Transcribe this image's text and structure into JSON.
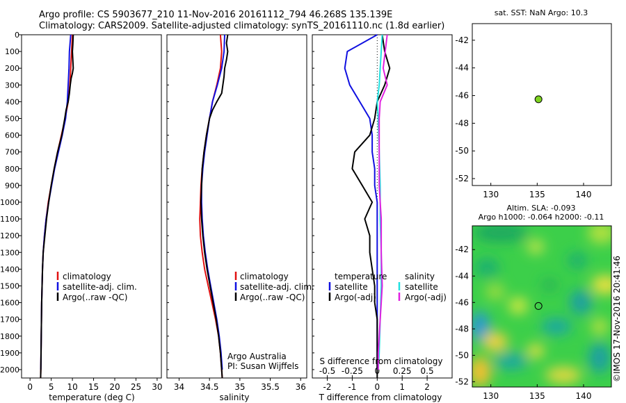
{
  "header": {
    "line1": "Argo profile: CS 5903677_210 11-Nov-2016 20161112_794 46.268S 135.139E",
    "line2": "Climatology: CARS2009. Satellite-adjusted climatology: synTS_20161110.nc (1.8d earlier)"
  },
  "credits": {
    "org": "Argo Australia",
    "pi": "PI: Susan Wijffels",
    "imos": "©IMOS 17-Nov-2016 20:41:46"
  },
  "colors": {
    "climatology": "#e01010",
    "satellite": "#1010e0",
    "argo": "#000000",
    "sat_salinity": "#20e0e0",
    "argo_salinity": "#e020e0",
    "dot": "#7ed321"
  },
  "chart_data": [
    {
      "type": "line",
      "id": "temperature",
      "xlabel": "temperature (deg C)",
      "xlim": [
        -2,
        31
      ],
      "ylim": [
        2050,
        0
      ],
      "xticks": [
        0,
        5,
        10,
        15,
        20,
        25,
        30
      ],
      "yticks": [
        0,
        100,
        200,
        300,
        400,
        500,
        600,
        700,
        800,
        900,
        1000,
        1100,
        1200,
        1300,
        1400,
        1500,
        1600,
        1700,
        1800,
        1900,
        2000
      ],
      "legend": [
        "climatology",
        "satellite-adj. clim.",
        "Argo(..raw -QC)"
      ],
      "series": [
        {
          "name": "climatology",
          "color": "#e01010",
          "points": [
            [
              10.0,
              0
            ],
            [
              9.8,
              100
            ],
            [
              9.6,
              200
            ],
            [
              9.4,
              300
            ],
            [
              9.0,
              400
            ],
            [
              8.3,
              500
            ],
            [
              7.4,
              600
            ],
            [
              6.5,
              700
            ],
            [
              5.7,
              800
            ],
            [
              5.0,
              900
            ],
            [
              4.3,
              1000
            ],
            [
              3.8,
              1100
            ],
            [
              3.4,
              1200
            ],
            [
              3.1,
              1300
            ],
            [
              2.95,
              1400
            ],
            [
              2.85,
              1500
            ],
            [
              2.75,
              1600
            ],
            [
              2.7,
              1700
            ],
            [
              2.65,
              1800
            ],
            [
              2.6,
              1900
            ],
            [
              2.55,
              2000
            ],
            [
              2.5,
              2050
            ]
          ]
        },
        {
          "name": "satellite-adj. clim.",
          "color": "#1010e0",
          "points": [
            [
              9.6,
              0
            ],
            [
              9.3,
              100
            ],
            [
              9.2,
              200
            ],
            [
              9.0,
              300
            ],
            [
              8.8,
              400
            ],
            [
              8.4,
              500
            ],
            [
              7.6,
              600
            ],
            [
              6.7,
              700
            ],
            [
              5.8,
              800
            ],
            [
              5.1,
              900
            ],
            [
              4.4,
              1000
            ],
            [
              3.8,
              1100
            ],
            [
              3.4,
              1200
            ],
            [
              3.1,
              1300
            ],
            [
              2.95,
              1400
            ],
            [
              2.85,
              1500
            ],
            [
              2.75,
              1600
            ],
            [
              2.7,
              1700
            ],
            [
              2.65,
              1800
            ],
            [
              2.6,
              1900
            ],
            [
              2.55,
              2000
            ]
          ]
        },
        {
          "name": "Argo(..raw -QC)",
          "color": "#000000",
          "points": [
            [
              10.2,
              0
            ],
            [
              10.1,
              60
            ],
            [
              10.0,
              100
            ],
            [
              10.2,
              200
            ],
            [
              10.0,
              230
            ],
            [
              9.7,
              260
            ],
            [
              9.5,
              300
            ],
            [
              9.3,
              350
            ],
            [
              9.0,
              400
            ],
            [
              8.5,
              450
            ],
            [
              8.2,
              500
            ],
            [
              7.5,
              600
            ],
            [
              6.5,
              700
            ],
            [
              5.7,
              800
            ],
            [
              5.0,
              900
            ],
            [
              4.4,
              1000
            ],
            [
              3.9,
              1100
            ],
            [
              3.5,
              1200
            ],
            [
              3.1,
              1300
            ],
            [
              2.95,
              1400
            ],
            [
              2.85,
              1500
            ],
            [
              2.75,
              1600
            ],
            [
              2.7,
              1700
            ],
            [
              2.65,
              1800
            ],
            [
              2.6,
              1900
            ],
            [
              2.55,
              2000
            ],
            [
              2.5,
              2050
            ]
          ]
        }
      ]
    },
    {
      "type": "line",
      "id": "salinity",
      "xlabel": "salinity",
      "xlim": [
        33.8,
        36.1
      ],
      "ylim": [
        2050,
        0
      ],
      "xticks": [
        34,
        34.5,
        35,
        35.5,
        36
      ],
      "xticklabels": [
        "34",
        "34.5",
        "35",
        "35.5",
        "36"
      ],
      "legend": [
        "climatology",
        "satellite-adj. clim.",
        "Argo(..raw -QC)"
      ],
      "series": [
        {
          "name": "climatology",
          "color": "#e01010",
          "points": [
            [
              34.68,
              0
            ],
            [
              34.7,
              100
            ],
            [
              34.68,
              200
            ],
            [
              34.62,
              300
            ],
            [
              34.55,
              400
            ],
            [
              34.5,
              500
            ],
            [
              34.45,
              600
            ],
            [
              34.41,
              700
            ],
            [
              34.38,
              800
            ],
            [
              34.36,
              900
            ],
            [
              34.35,
              1000
            ],
            [
              34.34,
              1100
            ],
            [
              34.35,
              1200
            ],
            [
              34.38,
              1300
            ],
            [
              34.42,
              1400
            ],
            [
              34.48,
              1500
            ],
            [
              34.54,
              1600
            ],
            [
              34.6,
              1700
            ],
            [
              34.65,
              1800
            ],
            [
              34.68,
              1900
            ],
            [
              34.7,
              2000
            ],
            [
              34.71,
              2050
            ]
          ]
        },
        {
          "name": "satellite-adj. clim.",
          "color": "#1010e0",
          "points": [
            [
              34.75,
              0
            ],
            [
              34.74,
              100
            ],
            [
              34.7,
              200
            ],
            [
              34.63,
              300
            ],
            [
              34.55,
              400
            ],
            [
              34.5,
              500
            ],
            [
              34.46,
              600
            ],
            [
              34.42,
              700
            ],
            [
              34.39,
              800
            ],
            [
              34.37,
              900
            ],
            [
              34.37,
              1000
            ],
            [
              34.38,
              1100
            ],
            [
              34.4,
              1200
            ],
            [
              34.43,
              1300
            ],
            [
              34.47,
              1400
            ],
            [
              34.52,
              1500
            ],
            [
              34.57,
              1600
            ],
            [
              34.62,
              1700
            ],
            [
              34.66,
              1800
            ],
            [
              34.69,
              1900
            ],
            [
              34.71,
              2000
            ]
          ]
        },
        {
          "name": "Argo(..raw -QC)",
          "color": "#000000",
          "points": [
            [
              34.8,
              0
            ],
            [
              34.78,
              50
            ],
            [
              34.8,
              100
            ],
            [
              34.78,
              150
            ],
            [
              34.75,
              200
            ],
            [
              34.74,
              250
            ],
            [
              34.72,
              300
            ],
            [
              34.7,
              350
            ],
            [
              34.62,
              400
            ],
            [
              34.55,
              450
            ],
            [
              34.5,
              500
            ],
            [
              34.45,
              600
            ],
            [
              34.41,
              700
            ],
            [
              34.38,
              800
            ],
            [
              34.37,
              900
            ],
            [
              34.36,
              1000
            ],
            [
              34.37,
              1100
            ],
            [
              34.39,
              1200
            ],
            [
              34.42,
              1300
            ],
            [
              34.46,
              1400
            ],
            [
              34.51,
              1500
            ],
            [
              34.56,
              1600
            ],
            [
              34.61,
              1700
            ],
            [
              34.65,
              1800
            ],
            [
              34.68,
              1900
            ],
            [
              34.7,
              2000
            ],
            [
              34.71,
              2050
            ]
          ]
        }
      ]
    },
    {
      "type": "line",
      "id": "difference",
      "xlabel": "T difference from climatology",
      "x2label": "S difference from climatology",
      "xlim": [
        -2.6,
        3.0
      ],
      "x2lim": [
        -0.65,
        0.75
      ],
      "ylim": [
        2050,
        0
      ],
      "xticks": [
        -2,
        -1,
        0,
        1,
        2
      ],
      "x2ticks": [
        -0.5,
        -0.25,
        0,
        0.25,
        0.5
      ],
      "x2ticklabels": [
        "-0.5",
        "-0.25",
        "0",
        "0.25",
        "0.5"
      ],
      "legend_temperature": {
        "title": "temperature",
        "items": [
          "satellite",
          "Argo(-adj)"
        ]
      },
      "legend_salinity": {
        "title": "salinity",
        "items": [
          "satellite",
          "Argo(-adj)"
        ]
      },
      "series": [
        {
          "name": "satellite",
          "group": "temperature",
          "color": "#1010e0",
          "points": [
            [
              0.0,
              0
            ],
            [
              -1.2,
              100
            ],
            [
              -1.3,
              200
            ],
            [
              -1.1,
              300
            ],
            [
              -0.7,
              400
            ],
            [
              -0.3,
              500
            ],
            [
              -0.2,
              600
            ],
            [
              -0.2,
              700
            ],
            [
              -0.1,
              800
            ],
            [
              -0.1,
              900
            ],
            [
              0.0,
              1000
            ],
            [
              0.0,
              1200
            ],
            [
              0.0,
              1400
            ],
            [
              0.0,
              1600
            ],
            [
              0.0,
              1800
            ],
            [
              0.0,
              2000
            ]
          ]
        },
        {
          "name": "Argo(-adj)",
          "group": "temperature",
          "color": "#000000",
          "points": [
            [
              0.2,
              0
            ],
            [
              0.3,
              100
            ],
            [
              0.5,
              200
            ],
            [
              0.3,
              300
            ],
            [
              0.0,
              400
            ],
            [
              -0.1,
              500
            ],
            [
              -0.3,
              600
            ],
            [
              -0.9,
              700
            ],
            [
              -1.0,
              800
            ],
            [
              -0.6,
              900
            ],
            [
              -0.2,
              1000
            ],
            [
              -0.5,
              1100
            ],
            [
              -0.3,
              1200
            ],
            [
              -0.3,
              1300
            ],
            [
              -0.2,
              1400
            ],
            [
              -0.1,
              1500
            ],
            [
              -0.1,
              1600
            ],
            [
              0.0,
              1700
            ],
            [
              0.0,
              1800
            ],
            [
              0.0,
              1900
            ],
            [
              0.0,
              2000
            ],
            [
              0.0,
              2050
            ]
          ]
        },
        {
          "name": "satellite",
          "group": "salinity",
          "color": "#20e0e0",
          "points": [
            [
              0.05,
              0
            ],
            [
              0.04,
              100
            ],
            [
              0.03,
              200
            ],
            [
              0.02,
              300
            ],
            [
              0.0,
              400
            ],
            [
              0.01,
              500
            ],
            [
              0.02,
              700
            ],
            [
              0.03,
              900
            ],
            [
              0.03,
              1100
            ],
            [
              0.04,
              1300
            ],
            [
              0.04,
              1500
            ],
            [
              0.03,
              1700
            ],
            [
              0.02,
              1900
            ],
            [
              0.01,
              2000
            ]
          ]
        },
        {
          "name": "Argo(-adj)",
          "group": "salinity",
          "color": "#e020e0",
          "points": [
            [
              0.1,
              0
            ],
            [
              0.08,
              100
            ],
            [
              0.06,
              200
            ],
            [
              0.1,
              300
            ],
            [
              0.03,
              400
            ],
            [
              0.02,
              500
            ],
            [
              0.02,
              700
            ],
            [
              0.02,
              900
            ],
            [
              0.03,
              1000
            ],
            [
              0.04,
              1100
            ],
            [
              0.04,
              1300
            ],
            [
              0.05,
              1500
            ],
            [
              0.04,
              1600
            ],
            [
              0.03,
              1700
            ],
            [
              0.02,
              1800
            ],
            [
              0.01,
              1900
            ],
            [
              0.01,
              2000
            ]
          ]
        }
      ]
    },
    {
      "type": "scatter",
      "id": "sst_map",
      "title": "sat. SST: NaN Argo: 10.3",
      "xlim": [
        128,
        143
      ],
      "ylim": [
        -52.5,
        -40.8
      ],
      "xticks": [
        130,
        135,
        140
      ],
      "yticks": [
        -42,
        -44,
        -46,
        -48,
        -50,
        -52
      ],
      "points": [
        [
          135.139,
          -46.268
        ]
      ]
    },
    {
      "type": "heatmap",
      "id": "sla_map",
      "title": "Altim. SLA: -0.093",
      "subtitle": "Argo h1000: -0.064 h2000: -0.11",
      "xlim": [
        128,
        143
      ],
      "ylim": [
        -52.4,
        -40.2
      ],
      "xticks": [
        130,
        135,
        140
      ],
      "yticks": [
        -42,
        -44,
        -46,
        -48,
        -50,
        -52
      ],
      "points": [
        [
          135.139,
          -46.268
        ]
      ]
    }
  ]
}
